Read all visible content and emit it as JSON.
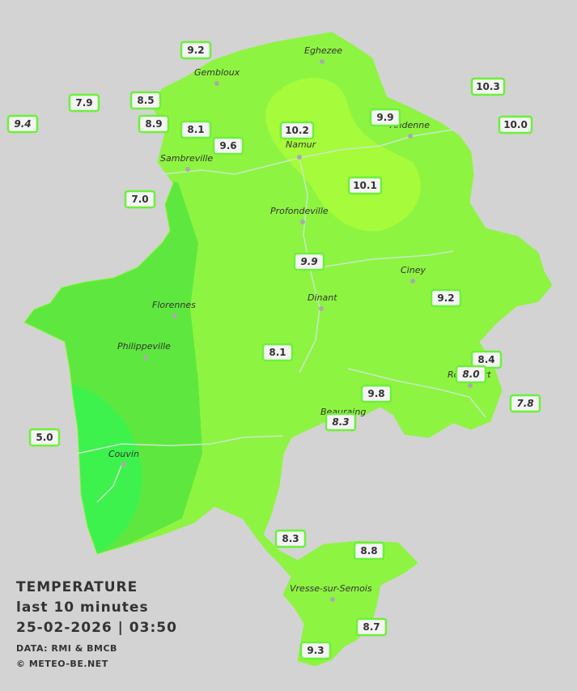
{
  "title": {
    "heading": "TEMPERATURE",
    "period": "last 10 minutes",
    "datetime": "25-02-2026 | 03:50",
    "source": "DATA: RMI & BMCB",
    "copyright": "© METEO-BE.NET"
  },
  "towns": [
    "Eghezee",
    "Gembloux",
    "Andenne",
    "Namur",
    "Sambreville",
    "Profondeville",
    "Ciney",
    "Dinant",
    "Florennes",
    "Philippeville",
    "Rochefort",
    "Beauraing",
    "Couvin",
    "Vresse-sur-Semois"
  ],
  "stations": [
    {
      "value": "9.2",
      "italic": false
    },
    {
      "value": "9.4",
      "italic": true
    },
    {
      "value": "7.9",
      "italic": false
    },
    {
      "value": "8.5",
      "italic": false
    },
    {
      "value": "8.9",
      "italic": false
    },
    {
      "value": "8.1",
      "italic": false
    },
    {
      "value": "9.6",
      "italic": false
    },
    {
      "value": "10.2",
      "italic": false
    },
    {
      "value": "9.9",
      "italic": false
    },
    {
      "value": "10.3",
      "italic": false
    },
    {
      "value": "10.0",
      "italic": false
    },
    {
      "value": "10.1",
      "italic": false
    },
    {
      "value": "7.0",
      "italic": false
    },
    {
      "value": "9.9",
      "italic": true
    },
    {
      "value": "9.2",
      "italic": false
    },
    {
      "value": "8.1",
      "italic": false
    },
    {
      "value": "8.4",
      "italic": false
    },
    {
      "value": "8.0",
      "italic": true
    },
    {
      "value": "9.8",
      "italic": false
    },
    {
      "value": "7.8",
      "italic": true
    },
    {
      "value": "8.3",
      "italic": true
    },
    {
      "value": "5.0",
      "italic": false
    },
    {
      "value": "8.3",
      "italic": false
    },
    {
      "value": "8.8",
      "italic": false
    },
    {
      "value": "8.7",
      "italic": false
    },
    {
      "value": "9.3",
      "italic": false
    }
  ]
}
